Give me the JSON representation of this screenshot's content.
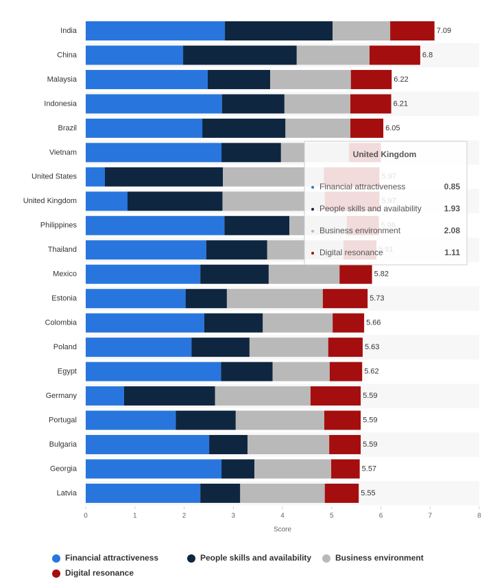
{
  "chart_data": {
    "type": "bar",
    "orientation": "horizontal",
    "stacked": true,
    "x_label": "Score",
    "categories": [
      "India",
      "China",
      "Malaysia",
      "Indonesia",
      "Brazil",
      "Vietnam",
      "United States",
      "United Kingdom",
      "Philippines",
      "Thailand",
      "Mexico",
      "Estonia",
      "Colombia",
      "Poland",
      "Egypt",
      "Germany",
      "Portugal",
      "Bulgaria",
      "Georgia",
      "Latvia"
    ],
    "series": [
      {
        "name": "Financial attractiveness",
        "color": "#2876dd",
        "values": [
          2.83,
          1.98,
          2.48,
          2.77,
          2.37,
          2.76,
          0.39,
          0.85,
          2.82,
          2.45,
          2.33,
          2.03,
          2.41,
          2.15,
          2.75,
          0.78,
          1.83,
          2.51,
          2.76,
          2.33
        ]
      },
      {
        "name": "People skills and availability",
        "color": "#0f2640",
        "values": [
          2.19,
          2.31,
          1.27,
          1.27,
          1.69,
          1.21,
          2.4,
          1.93,
          1.32,
          1.24,
          1.39,
          0.84,
          1.19,
          1.18,
          1.05,
          1.85,
          1.22,
          0.78,
          0.67,
          0.81
        ]
      },
      {
        "name": "Business environment",
        "color": "#b9b9b9",
        "values": [
          1.17,
          1.48,
          1.64,
          1.34,
          1.32,
          1.38,
          2.05,
          2.08,
          1.17,
          1.55,
          1.44,
          1.95,
          1.42,
          1.6,
          1.16,
          1.94,
          1.8,
          1.66,
          1.56,
          1.72
        ]
      },
      {
        "name": "Digital resonance",
        "color": "#a50e0e",
        "values": [
          0.9,
          1.03,
          0.83,
          0.83,
          0.67,
          0.65,
          1.13,
          1.11,
          0.65,
          0.67,
          0.66,
          0.91,
          0.64,
          0.7,
          0.66,
          1.02,
          0.74,
          0.64,
          0.58,
          0.69
        ]
      }
    ],
    "totals": [
      7.09,
      6.8,
      6.22,
      6.21,
      6.05,
      null,
      5.97,
      5.97,
      5.96,
      5.91,
      5.82,
      5.73,
      5.66,
      5.63,
      5.62,
      5.59,
      5.59,
      5.59,
      5.57,
      5.55
    ],
    "xlim": [
      0,
      8
    ],
    "xticks": [
      0,
      1,
      2,
      3,
      4,
      5,
      6,
      7,
      8
    ],
    "legend": "bottom",
    "tooltip_index": 7
  }
}
